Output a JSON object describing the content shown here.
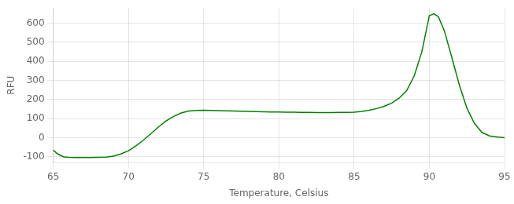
{
  "chart_data": {
    "type": "line",
    "xlabel": "Temperature, Celsius",
    "ylabel": "RFU",
    "x": [
      65.0,
      65.3,
      65.7,
      66.0,
      66.5,
      67.0,
      67.5,
      68.0,
      68.5,
      69.0,
      69.5,
      70.0,
      70.5,
      71.0,
      71.5,
      72.0,
      72.5,
      73.0,
      73.5,
      74.0,
      74.5,
      75.0,
      75.5,
      76.0,
      76.5,
      77.0,
      77.5,
      78.0,
      78.5,
      79.0,
      79.5,
      80.0,
      80.5,
      81.0,
      81.5,
      82.0,
      82.5,
      83.0,
      83.5,
      84.0,
      84.5,
      85.0,
      85.5,
      86.0,
      86.5,
      87.0,
      87.5,
      88.0,
      88.5,
      89.0,
      89.5,
      90.0,
      90.3,
      90.6,
      91.0,
      91.5,
      92.0,
      92.5,
      93.0,
      93.5,
      94.0,
      94.5,
      95.0
    ],
    "values": [
      -65,
      -85,
      -100,
      -102,
      -103,
      -103,
      -103,
      -102,
      -101,
      -96,
      -85,
      -68,
      -42,
      -12,
      22,
      57,
      88,
      112,
      130,
      140,
      143,
      144,
      143,
      142,
      141,
      140,
      139,
      138,
      137,
      136,
      135,
      135,
      134,
      134,
      133,
      133,
      132,
      132,
      132,
      133,
      133,
      134,
      138,
      144,
      153,
      165,
      182,
      208,
      248,
      325,
      450,
      640,
      650,
      635,
      560,
      420,
      275,
      155,
      75,
      28,
      10,
      4,
      0
    ],
    "color": "#008000",
    "xlim": [
      65,
      95
    ],
    "ylim": [
      -130,
      680
    ],
    "xticks": [
      65,
      70,
      75,
      80,
      85,
      90,
      95
    ],
    "yticks": [
      -100,
      0,
      100,
      200,
      300,
      400,
      500,
      600
    ],
    "grid": true
  }
}
